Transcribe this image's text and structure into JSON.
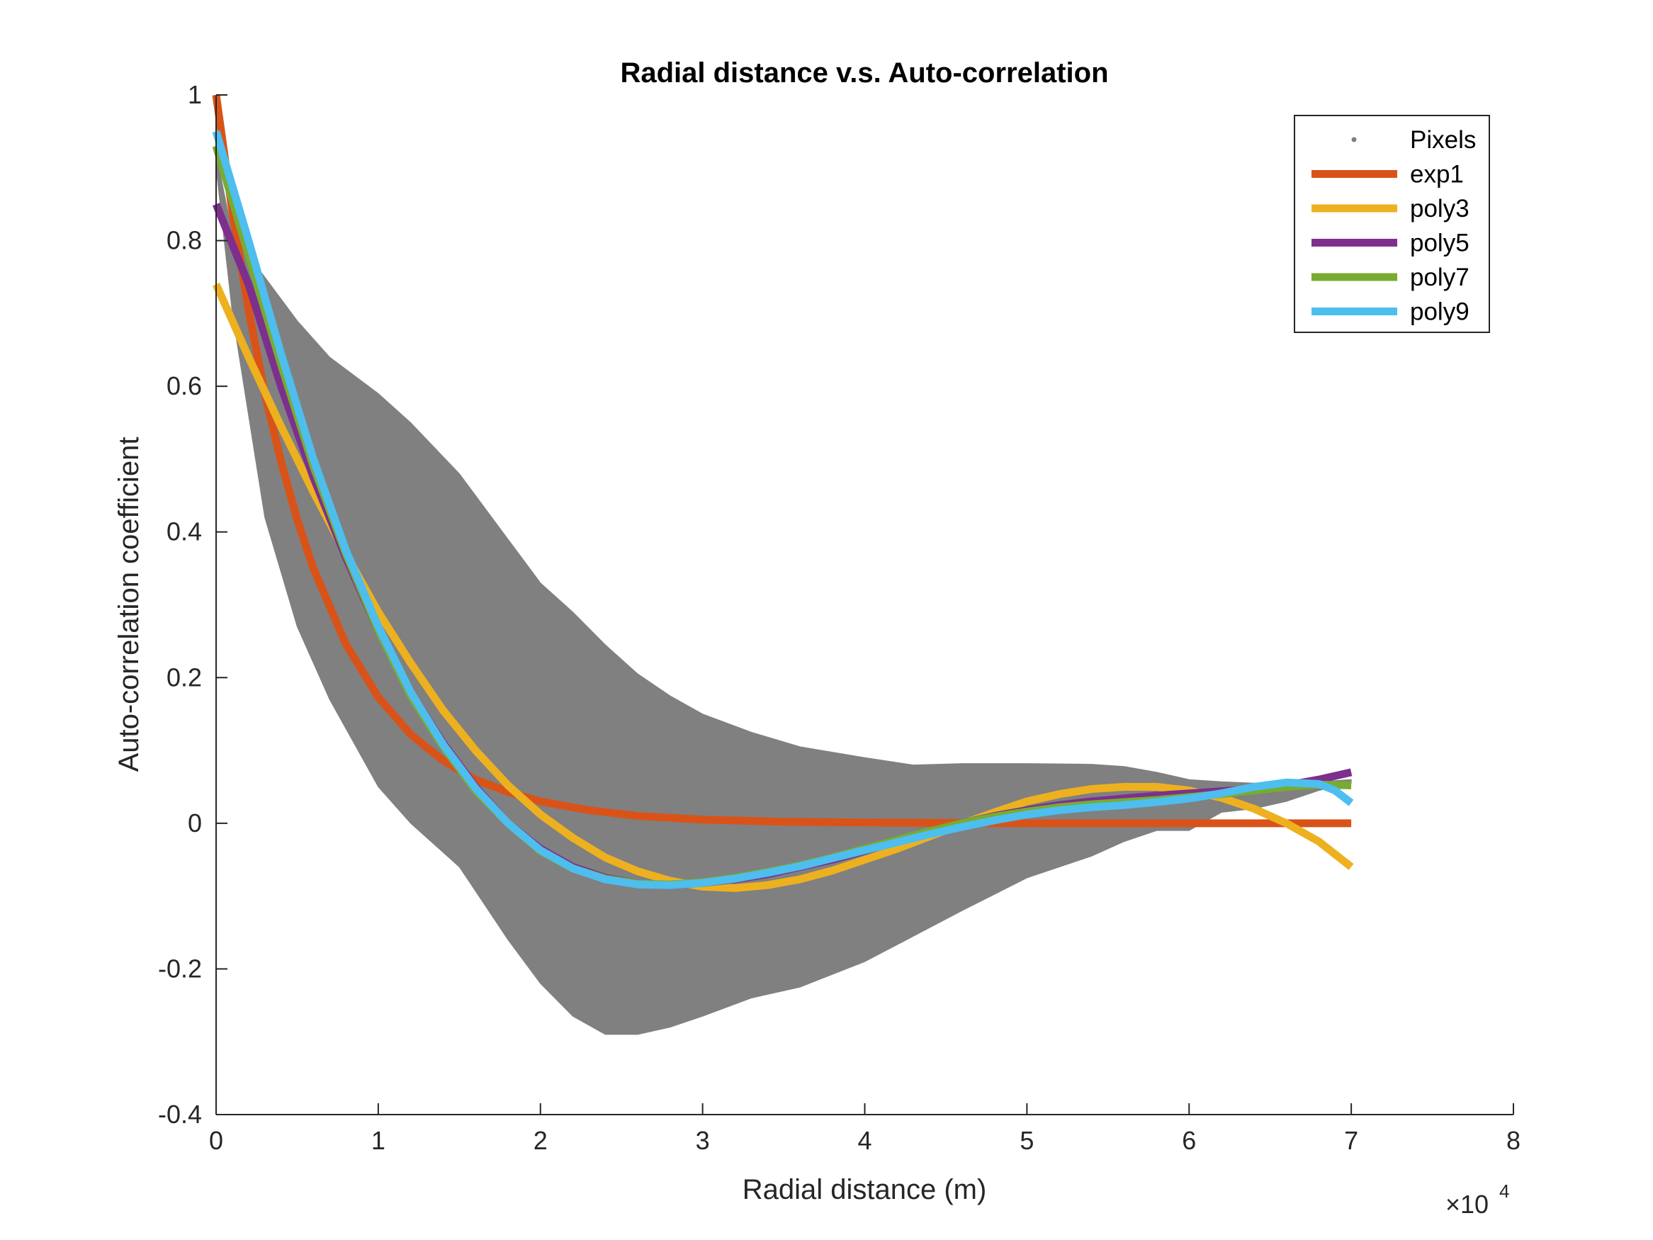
{
  "chart_data": {
    "type": "line",
    "title": "Radial distance v.s. Auto-correlation",
    "xlabel": "Radial distance (m)",
    "ylabel": "Auto-correlation coefficient",
    "x_exponent_label": "×10",
    "x_exponent_power": "4",
    "xlim": [
      0,
      80000
    ],
    "ylim": [
      -0.4,
      1
    ],
    "xticks": [
      0,
      10000,
      20000,
      30000,
      40000,
      50000,
      60000,
      70000,
      80000
    ],
    "xtick_labels": [
      "0",
      "1",
      "2",
      "3",
      "4",
      "5",
      "6",
      "7",
      "8"
    ],
    "yticks": [
      -0.4,
      -0.2,
      0,
      0.2,
      0.4,
      0.6,
      0.8,
      1
    ],
    "ytick_labels": [
      "-0.4",
      "-0.2",
      "0",
      "0.2",
      "0.4",
      "0.6",
      "0.8",
      "1"
    ],
    "grid": false,
    "legend_position": "top-right",
    "pixels_band": {
      "name": "Pixels",
      "color": "#808080",
      "x": [
        0,
        1000,
        3000,
        5000,
        7000,
        10000,
        12000,
        15000,
        18000,
        20000,
        22000,
        24000,
        26000,
        28000,
        30000,
        33000,
        36000,
        40000,
        43000,
        46000,
        50000,
        54000,
        56000,
        58000,
        60000,
        62000,
        64000,
        66000,
        68000,
        70000
      ],
      "upper": [
        0.92,
        0.81,
        0.75,
        0.69,
        0.64,
        0.59,
        0.55,
        0.48,
        0.39,
        0.33,
        0.29,
        0.245,
        0.205,
        0.175,
        0.15,
        0.125,
        0.105,
        0.09,
        0.08,
        0.082,
        0.082,
        0.081,
        0.078,
        0.07,
        0.06,
        0.057,
        0.055,
        0.055,
        0.057,
        0.06
      ],
      "lower": [
        0.9,
        0.7,
        0.42,
        0.27,
        0.17,
        0.05,
        0.0,
        -0.06,
        -0.16,
        -0.22,
        -0.265,
        -0.29,
        -0.29,
        -0.28,
        -0.265,
        -0.24,
        -0.225,
        -0.19,
        -0.155,
        -0.12,
        -0.075,
        -0.045,
        -0.025,
        -0.01,
        -0.01,
        0.015,
        0.02,
        0.03,
        0.045,
        0.055
      ]
    },
    "series": [
      {
        "name": "exp1",
        "color": "#D95319",
        "x": [
          0,
          1000,
          2000,
          3000,
          4000,
          5000,
          6000,
          8000,
          10000,
          12000,
          14000,
          16000,
          18000,
          20000,
          23000,
          26000,
          30000,
          35000,
          40000,
          50000,
          60000,
          70000
        ],
        "values": [
          1.0,
          0.84,
          0.705,
          0.59,
          0.497,
          0.417,
          0.35,
          0.246,
          0.173,
          0.122,
          0.086,
          0.06,
          0.043,
          0.03,
          0.018,
          0.01,
          0.005,
          0.002,
          0.001,
          0.0,
          0.0,
          0.0
        ]
      },
      {
        "name": "poly3",
        "color": "#EDB120",
        "x": [
          0,
          2000,
          4000,
          6000,
          8000,
          10000,
          12000,
          14000,
          16000,
          18000,
          20000,
          22000,
          24000,
          26000,
          28000,
          30000,
          32000,
          34000,
          36000,
          38000,
          40000,
          42000,
          44000,
          46000,
          48000,
          50000,
          52000,
          54000,
          56000,
          58000,
          60000,
          62000,
          64000,
          66000,
          68000,
          70000
        ],
        "values": [
          0.74,
          0.64,
          0.545,
          0.455,
          0.37,
          0.29,
          0.22,
          0.155,
          0.1,
          0.052,
          0.012,
          -0.02,
          -0.047,
          -0.066,
          -0.079,
          -0.087,
          -0.089,
          -0.085,
          -0.077,
          -0.065,
          -0.05,
          -0.035,
          -0.018,
          -0.001,
          0.015,
          0.03,
          0.04,
          0.047,
          0.05,
          0.05,
          0.045,
          0.035,
          0.02,
          0.0,
          -0.025,
          -0.06
        ]
      },
      {
        "name": "poly5",
        "color": "#7E2F8E",
        "x": [
          0,
          2000,
          4000,
          6000,
          8000,
          10000,
          12000,
          14000,
          16000,
          18000,
          20000,
          22000,
          24000,
          26000,
          28000,
          30000,
          32000,
          34000,
          36000,
          38000,
          40000,
          42000,
          44000,
          46000,
          48000,
          50000,
          52000,
          54000,
          56000,
          58000,
          60000,
          62000,
          64000,
          66000,
          68000,
          70000
        ],
        "values": [
          0.85,
          0.74,
          0.6,
          0.475,
          0.365,
          0.265,
          0.18,
          0.11,
          0.05,
          0.0,
          -0.035,
          -0.06,
          -0.075,
          -0.083,
          -0.085,
          -0.082,
          -0.077,
          -0.07,
          -0.06,
          -0.05,
          -0.038,
          -0.025,
          -0.012,
          0.0,
          0.01,
          0.018,
          0.025,
          0.03,
          0.034,
          0.038,
          0.041,
          0.044,
          0.047,
          0.052,
          0.06,
          0.07
        ]
      },
      {
        "name": "poly7",
        "color": "#77AC30",
        "x": [
          0,
          2000,
          4000,
          6000,
          8000,
          10000,
          12000,
          14000,
          16000,
          18000,
          20000,
          22000,
          24000,
          26000,
          28000,
          30000,
          32000,
          34000,
          36000,
          38000,
          40000,
          42000,
          44000,
          46000,
          48000,
          50000,
          52000,
          54000,
          56000,
          58000,
          60000,
          62000,
          64000,
          66000,
          68000,
          70000
        ],
        "values": [
          0.93,
          0.78,
          0.63,
          0.49,
          0.37,
          0.265,
          0.175,
          0.105,
          0.045,
          0.0,
          -0.038,
          -0.062,
          -0.076,
          -0.083,
          -0.084,
          -0.081,
          -0.075,
          -0.067,
          -0.058,
          -0.047,
          -0.035,
          -0.023,
          -0.011,
          0.0,
          0.009,
          0.016,
          0.022,
          0.026,
          0.029,
          0.032,
          0.036,
          0.04,
          0.045,
          0.05,
          0.053,
          0.052
        ]
      },
      {
        "name": "poly9",
        "color": "#4DBEEE",
        "x": [
          0,
          2000,
          4000,
          6000,
          8000,
          10000,
          12000,
          14000,
          16000,
          18000,
          20000,
          22000,
          24000,
          26000,
          28000,
          30000,
          32000,
          34000,
          36000,
          38000,
          40000,
          42000,
          44000,
          46000,
          48000,
          50000,
          52000,
          54000,
          56000,
          58000,
          60000,
          62000,
          64000,
          66000,
          68000,
          69000,
          70000
        ],
        "values": [
          0.95,
          0.8,
          0.645,
          0.5,
          0.375,
          0.27,
          0.18,
          0.108,
          0.048,
          0.0,
          -0.037,
          -0.062,
          -0.077,
          -0.084,
          -0.085,
          -0.082,
          -0.076,
          -0.068,
          -0.059,
          -0.048,
          -0.037,
          -0.026,
          -0.015,
          -0.005,
          0.004,
          0.012,
          0.018,
          0.022,
          0.025,
          0.029,
          0.034,
          0.041,
          0.05,
          0.056,
          0.054,
          0.045,
          0.028
        ]
      }
    ]
  }
}
